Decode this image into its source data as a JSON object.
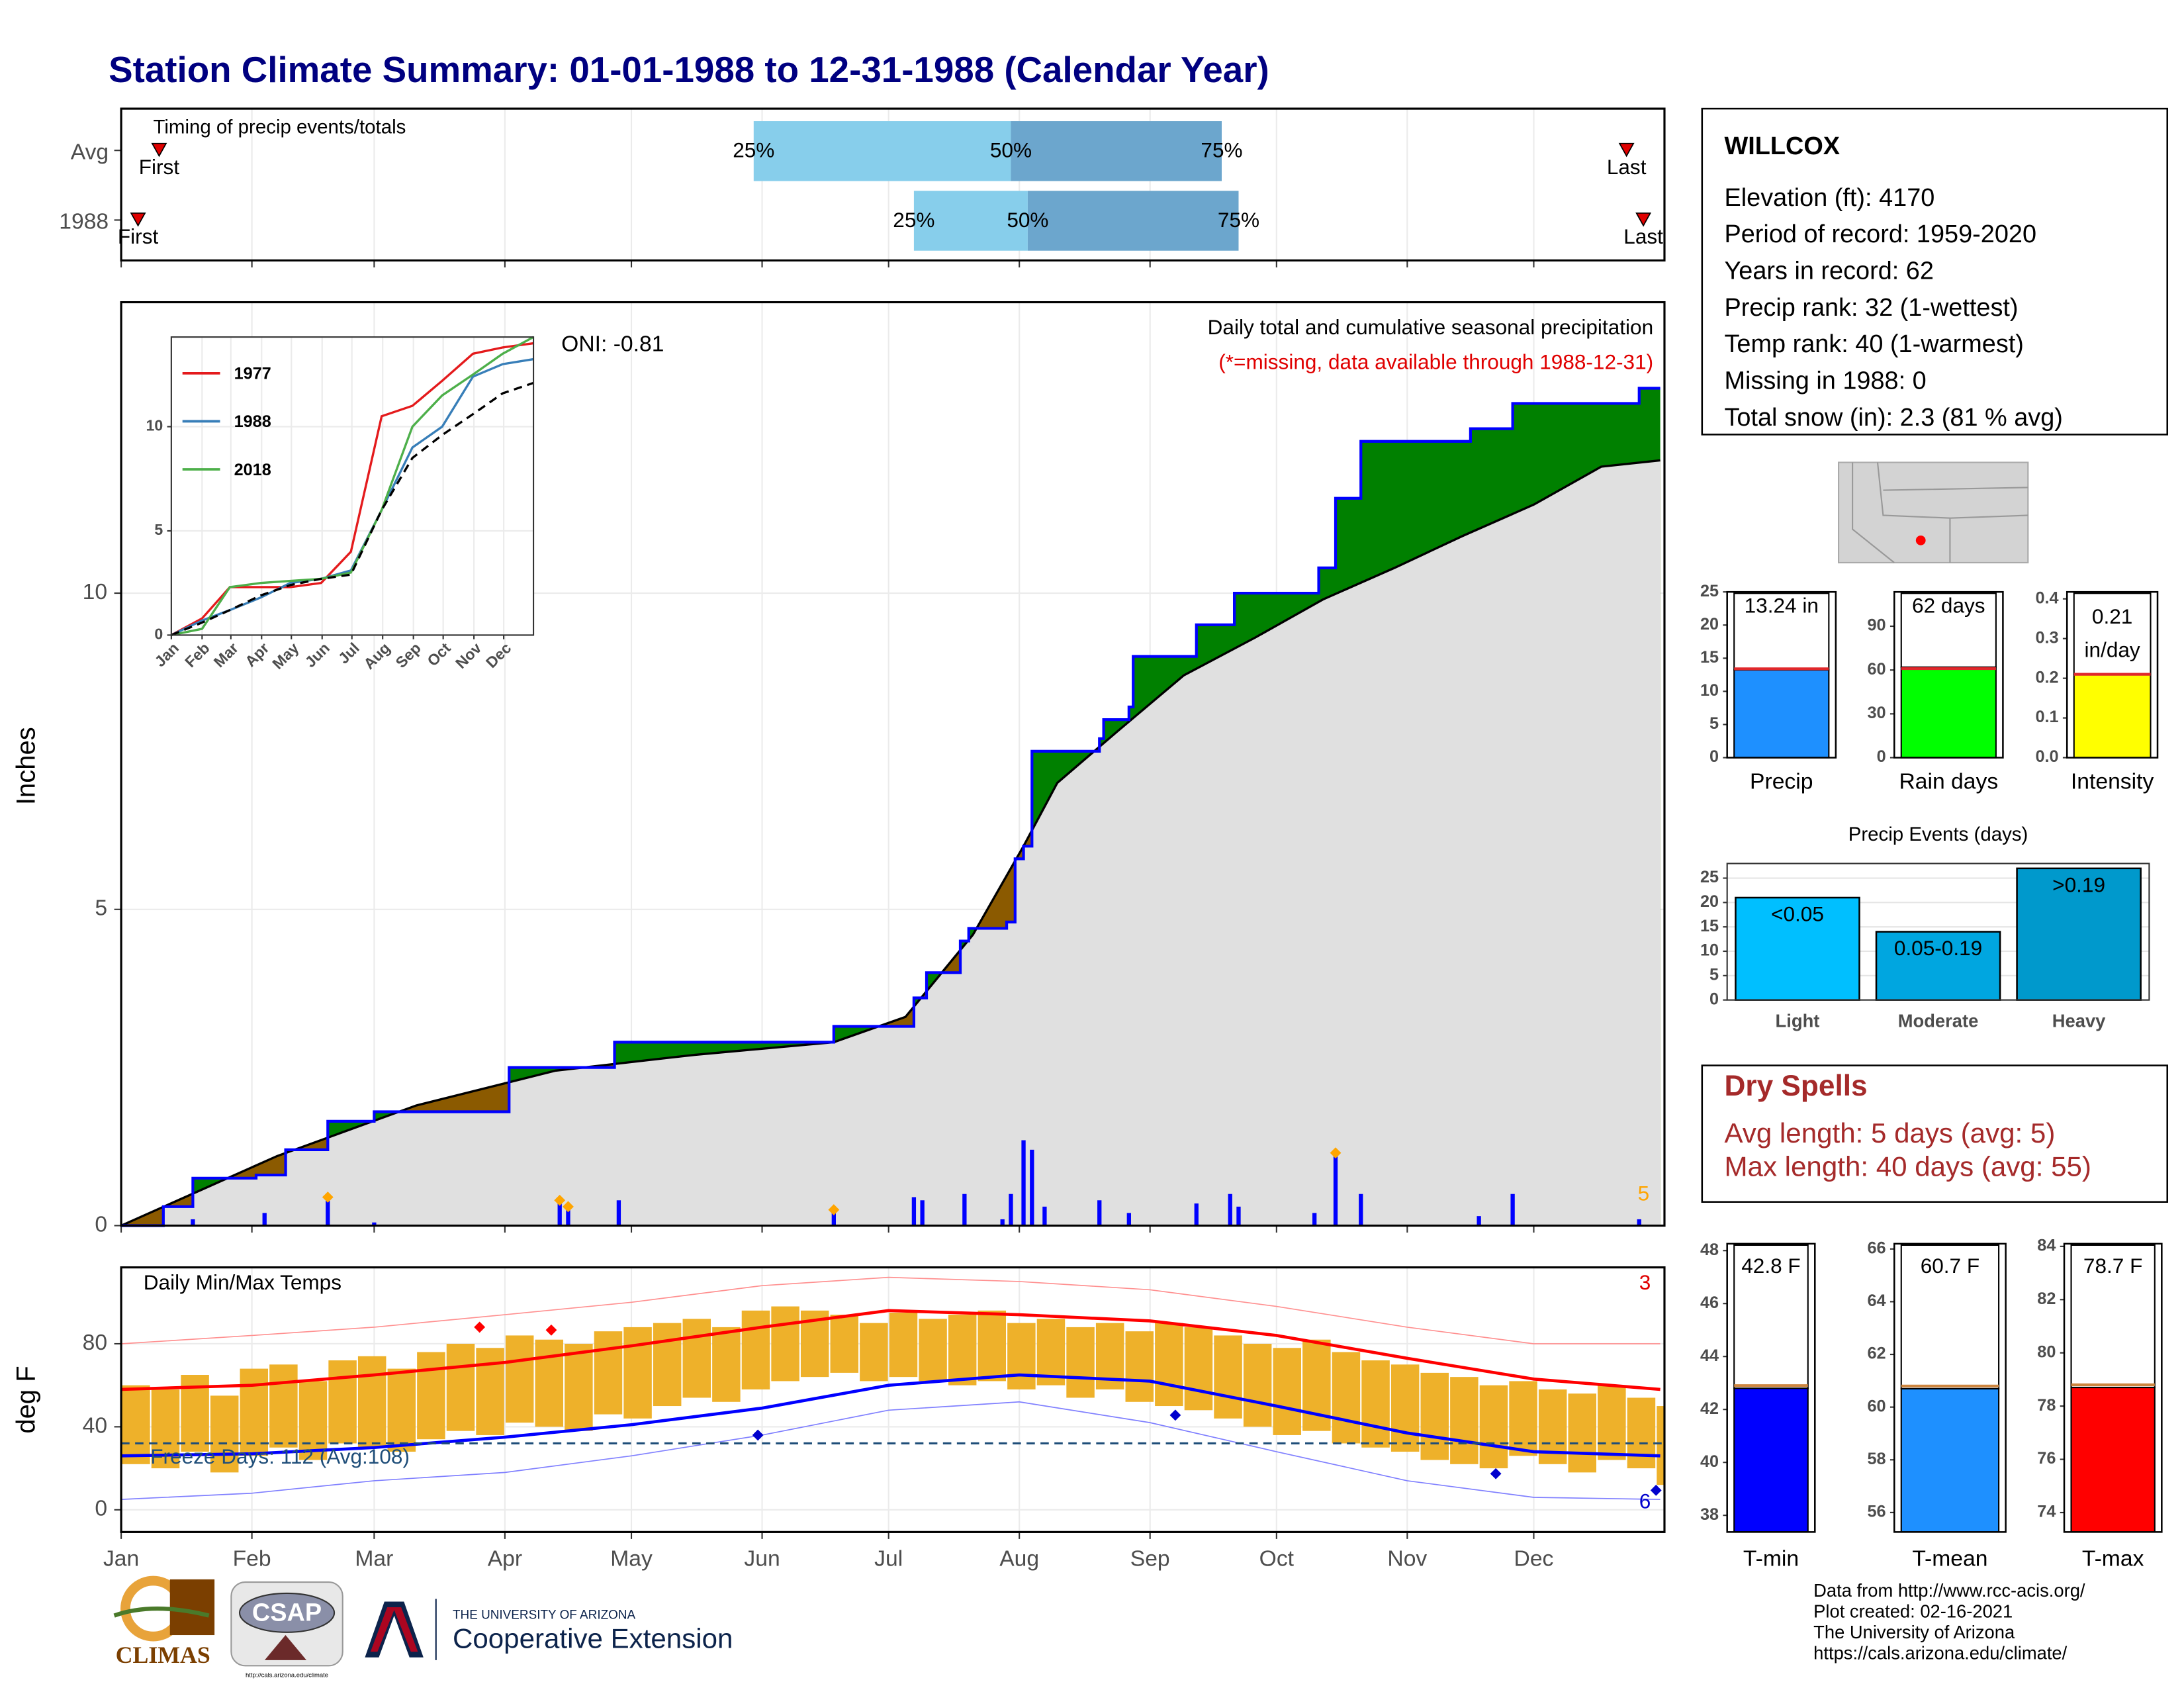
{
  "title": "Station Climate Summary: 01-01-1988 to 12-31-1988 (Calendar Year)",
  "months": {
    "labels": [
      "Jan",
      "Feb",
      "Mar",
      "Apr",
      "May",
      "Jun",
      "Jul",
      "Aug",
      "Sep",
      "Oct",
      "Nov",
      "Dec"
    ],
    "days": [
      0,
      31,
      60,
      91,
      121,
      152,
      182,
      213,
      244,
      274,
      305,
      335
    ]
  },
  "station": {
    "name": "WILLCOX",
    "lines": [
      "Elevation (ft): 4170",
      "Period of record: 1959-2020",
      "Years in record: 62",
      "Precip rank: 32 (1-wettest)",
      "Temp rank: 40 (1-warmest)",
      "Missing in 1988: 0",
      "Total snow (in): 2.3 (81 % avg)"
    ]
  },
  "dry_spells": {
    "title": "Dry Spells",
    "lines": [
      "Avg length: 5 days (avg: 5)",
      "Max length: 40 days (avg: 55)"
    ]
  },
  "footer": {
    "lines": [
      "Data from http://www.rcc-acis.org/",
      "Plot created: 02-16-2021",
      "The University of Arizona",
      "https://cals.arizona.edu/climate/"
    ]
  },
  "logos": {
    "climas": "CLIMAS",
    "csap": "CSAP",
    "csap_url": "http://cals.arizona.edu/climate",
    "university": "THE UNIVERSITY OF ARIZONA",
    "extension": "Cooperative Extension"
  },
  "chart_data": [
    {
      "type": "timing",
      "title": "Timing of precip events/totals",
      "xlim": [
        0,
        366
      ],
      "rows": [
        {
          "name": "Avg",
          "first": 9,
          "q25": 150,
          "q50": 211,
          "q75": 261,
          "last": 357
        },
        {
          "name": "1988",
          "first": 4,
          "q25": 188,
          "q50": 215,
          "q75": 265,
          "last": 361
        }
      ],
      "labels": {
        "first": "First",
        "last": "Last",
        "q25": "25%",
        "q50": "50%",
        "q75": "75%"
      },
      "colors": [
        "#87ceeb",
        "#6ca6cd"
      ]
    },
    {
      "type": "cumulative",
      "title": "Daily total and cumulative seasonal precipitation",
      "subtitle": "(*=missing, data available through 1988-12-31)",
      "oni": "ONI: -0.81",
      "count_label": "5",
      "ylabel": "Inches",
      "xlim": [
        0,
        366
      ],
      "ylim": [
        0,
        14.6
      ],
      "yticks": [
        0,
        5,
        10
      ],
      "grid": true,
      "cumulative": {
        "name": "1988",
        "color": "#0000ff",
        "x": [
          0,
          10,
          17,
          32,
          39,
          49,
          60,
          92,
          116,
          117,
          168,
          169,
          183,
          188,
          191,
          199,
          201,
          210,
          212,
          214,
          216,
          232,
          233,
          239,
          240,
          254,
          255,
          263,
          264,
          283,
          284,
          288,
          293,
          294,
          318,
          320,
          329,
          330,
          359,
          360,
          365
        ],
        "values": [
          0,
          0.3,
          0.75,
          0.8,
          1.2,
          1.65,
          1.8,
          2.5,
          2.5,
          2.9,
          2.9,
          3.15,
          3.15,
          3.6,
          4.0,
          4.5,
          4.7,
          4.8,
          5.8,
          6.0,
          7.5,
          7.7,
          8.0,
          8.2,
          9.0,
          9.0,
          9.5,
          9.5,
          10.0,
          10.0,
          10.4,
          11.5,
          11.5,
          12.4,
          12.4,
          12.6,
          12.6,
          13.0,
          13.0,
          13.24,
          13.24
        ]
      },
      "average": {
        "color": "#000000",
        "x": [
          0,
          37,
          70,
          103,
          136,
          169,
          186,
          202,
          214,
          222,
          236,
          252,
          269,
          285,
          302,
          318,
          335,
          351,
          365
        ],
        "values": [
          0,
          1.1,
          1.9,
          2.45,
          2.7,
          2.9,
          3.3,
          4.6,
          6.0,
          7.0,
          7.8,
          8.7,
          9.3,
          9.9,
          10.4,
          10.9,
          11.4,
          12.0,
          12.1
        ]
      },
      "daily": {
        "color": "#0000ff",
        "x": [
          17,
          34,
          49,
          60,
          104,
          106,
          118,
          169,
          188,
          190,
          200,
          209,
          211,
          214,
          216,
          219,
          232,
          239,
          255,
          263,
          265,
          283,
          288,
          294,
          322,
          330,
          360
        ],
        "values": [
          0.1,
          0.2,
          0.45,
          0.05,
          0.4,
          0.3,
          0.4,
          0.25,
          0.45,
          0.4,
          0.5,
          0.1,
          0.5,
          1.35,
          1.2,
          0.3,
          0.4,
          0.2,
          0.35,
          0.5,
          0.3,
          0.2,
          1.15,
          0.5,
          0.15,
          0.5,
          0.1
        ]
      },
      "snow": {
        "color": "#ffa500",
        "x": [
          49,
          104,
          106,
          169,
          288
        ],
        "values": [
          0.45,
          0.4,
          0.3,
          0.25,
          1.15
        ]
      },
      "above_color": "#008000",
      "below_color": "#8b5a00",
      "base_color": "#e0e0e0"
    },
    {
      "type": "inset",
      "xlim": [
        0,
        365
      ],
      "ylim": [
        0,
        14.3
      ],
      "yticks": [
        0,
        5,
        10
      ],
      "x": [
        0,
        31,
        59,
        90,
        120,
        151,
        181,
        212,
        243,
        273,
        304,
        334,
        365
      ],
      "series": [
        {
          "name": "1977",
          "color": "#e41a1c",
          "values": [
            0,
            0.8,
            2.3,
            2.3,
            2.3,
            2.5,
            4.0,
            10.5,
            11.0,
            12.2,
            13.5,
            13.8,
            14.0
          ]
        },
        {
          "name": "1988",
          "color": "#377eb8",
          "values": [
            0,
            0.7,
            1.2,
            1.8,
            2.5,
            2.7,
            3.1,
            6.0,
            9.0,
            10.0,
            12.4,
            13.0,
            13.24
          ]
        },
        {
          "name": "2018",
          "color": "#4daf4a",
          "values": [
            0,
            0.3,
            2.3,
            2.5,
            2.6,
            2.7,
            3.0,
            6.0,
            10.0,
            11.5,
            12.5,
            13.5,
            14.3
          ]
        }
      ],
      "average": {
        "color": "#000000",
        "values": [
          0,
          0.6,
          1.2,
          1.9,
          2.4,
          2.7,
          2.9,
          6.0,
          8.5,
          9.6,
          10.6,
          11.6,
          12.1
        ]
      }
    },
    {
      "type": "temps",
      "title": "Daily Min/Max Temps",
      "freeze_label": "Freeze Days: 112 (Avg:108)",
      "high_count": "3",
      "low_count": "6",
      "ylabel": "deg F",
      "xlim": [
        0,
        366
      ],
      "ylim": [
        -10.7,
        116.8
      ],
      "yticks": [
        0,
        40,
        80
      ],
      "grid": true,
      "freeze": 32,
      "bar_color": "#eeb12a",
      "weeks": {
        "x": [
          0,
          7,
          14,
          21,
          28,
          35,
          42,
          49,
          56,
          63,
          70,
          77,
          84,
          91,
          98,
          105,
          112,
          119,
          126,
          133,
          140,
          147,
          154,
          161,
          168,
          175,
          182,
          189,
          196,
          203,
          210,
          217,
          224,
          231,
          238,
          245,
          252,
          259,
          266,
          273,
          280,
          287,
          294,
          301,
          308,
          315,
          322,
          329,
          336,
          343,
          350,
          357,
          364
        ],
        "max": [
          60,
          58,
          65,
          55,
          68,
          70,
          62,
          72,
          74,
          68,
          76,
          80,
          78,
          84,
          82,
          80,
          86,
          88,
          90,
          92,
          88,
          96,
          98,
          96,
          94,
          90,
          95,
          92,
          94,
          96,
          90,
          92,
          88,
          90,
          86,
          90,
          88,
          84,
          80,
          78,
          82,
          76,
          72,
          70,
          66,
          64,
          60,
          62,
          58,
          56,
          60,
          54,
          50
        ],
        "min": [
          22,
          20,
          28,
          18,
          26,
          30,
          24,
          32,
          30,
          28,
          34,
          38,
          36,
          42,
          40,
          38,
          46,
          44,
          50,
          54,
          52,
          58,
          62,
          64,
          66,
          62,
          64,
          62,
          60,
          62,
          58,
          60,
          54,
          58,
          52,
          50,
          48,
          44,
          40,
          36,
          38,
          32,
          30,
          28,
          24,
          22,
          20,
          26,
          22,
          18,
          24,
          20,
          12
        ]
      },
      "normals": {
        "x": [
          0,
          31,
          60,
          91,
          121,
          152,
          182,
          213,
          244,
          274,
          305,
          335,
          365
        ],
        "max": [
          58,
          60,
          65,
          71,
          79,
          88,
          96,
          94,
          91,
          84,
          73,
          63,
          58
        ],
        "min": [
          26,
          27,
          30,
          35,
          41,
          49,
          60,
          65,
          62,
          50,
          37,
          28,
          26
        ],
        "record_max": [
          80,
          84,
          88,
          94,
          100,
          108,
          112,
          110,
          106,
          98,
          88,
          80,
          80
        ],
        "record_min": [
          5,
          8,
          14,
          18,
          26,
          36,
          48,
          52,
          42,
          28,
          14,
          6,
          5
        ]
      },
      "record_highs": {
        "color": "#ff0000",
        "x": [
          85,
          102
        ],
        "values": [
          88,
          86.6
        ]
      },
      "record_lows": {
        "color": "#0000cd",
        "x": [
          151,
          250,
          326,
          364
        ],
        "values": [
          36,
          45.6,
          17.4,
          9.4
        ]
      }
    },
    {
      "type": "gauge",
      "label": "Precip",
      "value": 13.24,
      "value_label": "13.24 in",
      "avg": 13.4,
      "ylim": [
        0,
        25
      ],
      "yticks": [
        0,
        5,
        10,
        15,
        20,
        25
      ],
      "color": "#1e90ff",
      "avg_color": "#e0282b"
    },
    {
      "type": "gauge",
      "label": "Rain days",
      "value": 62,
      "value_label": "62 days",
      "avg": 61,
      "ylim": [
        0,
        113.5
      ],
      "yticks": [
        0,
        30,
        60,
        90
      ],
      "color": "#00ff00",
      "avg_color": "#e0282b"
    },
    {
      "type": "gauge",
      "label": "Intensity",
      "value": 0.21,
      "value_label": "0.21 in/day",
      "avg": 0.21,
      "ylim": [
        0,
        0.4175
      ],
      "yticks": [
        {
          "value": 0,
          "label": "0.0"
        },
        0.1,
        0.2,
        0.3,
        0.4
      ],
      "color": "#ffff00",
      "avg_color": "#e0282b"
    },
    {
      "type": "events",
      "title": "Precip Events (days)",
      "categories": [
        "Light",
        "Moderate",
        "Heavy"
      ],
      "values": [
        21,
        14,
        27
      ],
      "bin_labels": [
        "<0.05",
        "0.05-0.19",
        ">0.19"
      ],
      "colors": [
        "#00bfff",
        "#00a6e0",
        "#0099cc"
      ],
      "ylim": [
        0,
        28
      ],
      "yticks": [
        0,
        5,
        10,
        15,
        20,
        25
      ],
      "grid": true
    },
    {
      "type": "gauge",
      "label": "T-min",
      "value": 42.8,
      "value_label": "42.8 F",
      "avg": 42.9,
      "ylim": [
        37.37,
        48.26
      ],
      "yticks": [
        38,
        40,
        42,
        44,
        46,
        48
      ],
      "color": "#0000ff",
      "avg_color": "#cd853f"
    },
    {
      "type": "gauge",
      "label": "T-mean",
      "value": 60.7,
      "value_label": "60.7 F",
      "avg": 60.8,
      "ylim": [
        55.26,
        66.2
      ],
      "yticks": [
        56,
        58,
        60,
        62,
        64,
        66
      ],
      "color": "#1e90ff",
      "avg_color": "#cd853f"
    },
    {
      "type": "gauge",
      "label": "T-max",
      "value": 78.7,
      "value_label": "78.7 F",
      "avg": 78.8,
      "ylim": [
        73.27,
        84.1
      ],
      "yticks": [
        74,
        76,
        78,
        80,
        82,
        84
      ],
      "color": "#ff0000",
      "avg_color": "#cd853f"
    }
  ]
}
